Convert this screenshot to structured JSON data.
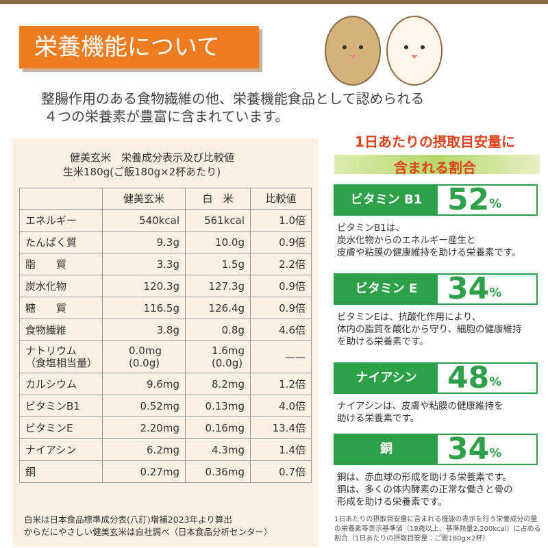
{
  "header": {
    "title": "栄養機能について"
  },
  "intro": [
    "整腸作用のある食物繊維の他、栄養機能食品として認められる",
    "４つの栄養素が豊富に含まれています。"
  ],
  "table": {
    "caption": [
      "健美玄米　栄養成分表示及び比較値",
      "生米180g(ご飯180g×2杯あたり)"
    ],
    "columns": [
      "健美玄米",
      "白　米",
      "比較値"
    ],
    "rows": [
      [
        "エネルギー",
        "540kcal",
        "561kcal",
        "1.0倍"
      ],
      [
        "たんぱく質",
        "9.3g",
        "10.0g",
        "0.9倍"
      ],
      [
        "脂　　質",
        "3.3g",
        "1.5g",
        "2.2倍"
      ],
      [
        "炭水化物",
        "120.3g",
        "127.3g",
        "0.9倍"
      ],
      [
        "糖　　質",
        "116.5g",
        "126.4g",
        "0.9倍"
      ],
      [
        "食物繊維",
        "3.8g",
        "0.8g",
        "4.6倍"
      ],
      [
        "ナトリウム\n（食塩相当量）",
        "0.0mg\n(0.0g)",
        "1.6mg\n(0.0g)",
        "——"
      ],
      [
        "カルシウム",
        "9.6mg",
        "8.2mg",
        "1.2倍"
      ],
      [
        "ビタミンB1",
        "0.52mg",
        "0.13mg",
        "4.0倍"
      ],
      [
        "ビタミンE",
        "2.20mg",
        "0.16mg",
        "13.4倍"
      ],
      [
        "ナイアシン",
        "6.2mg",
        "4.3mg",
        "1.4倍"
      ],
      [
        "銅",
        "0.27mg",
        "0.36mg",
        "0.7倍"
      ]
    ],
    "notes": [
      "白米は日本食品標準成分表(八訂)増補2023年より算出",
      "からだにやさしい健美玄米は自社調べ（日本食品分析センター）"
    ]
  },
  "ratio": {
    "heading": [
      "1日あたりの摂取目安量に",
      "含まれる割合"
    ],
    "nutrients": [
      {
        "name": "ビタミン B1",
        "percent": 52,
        "sign": "%",
        "description": "ビタミンB1は、\n炭水化物からのエネルギー産生と\n皮膚や粘膜の健康維持を助ける栄養素です。"
      },
      {
        "name": "ビタミン E",
        "percent": 34,
        "sign": "%",
        "description": "ビタミンEは、抗酸化作用により、\n体内の脂質を酸化から守り、細胞の健康維持\nを助ける栄養素です。"
      },
      {
        "name": "ナイアシン",
        "percent": 48,
        "sign": "%",
        "description": "ナイアシンは、皮膚や粘膜の健康維持を\n助ける栄養素です。"
      },
      {
        "name": "銅",
        "percent": 34,
        "sign": "%",
        "description": "銅は、赤血球の形成を助ける栄養素です。\n銅は、多くの体内酵素の正常な働きと骨の\n形成を助ける栄養素です。"
      }
    ],
    "footnote": "1日あたりの摂取目安量に含まれる機能の表示を行う栄養成分の量の栄養素等表示基準値（18歳以上、基準熱量2,200kcal）に占める割合（1日あたりの摂取目安量：ご飯180g×2杯）"
  }
}
